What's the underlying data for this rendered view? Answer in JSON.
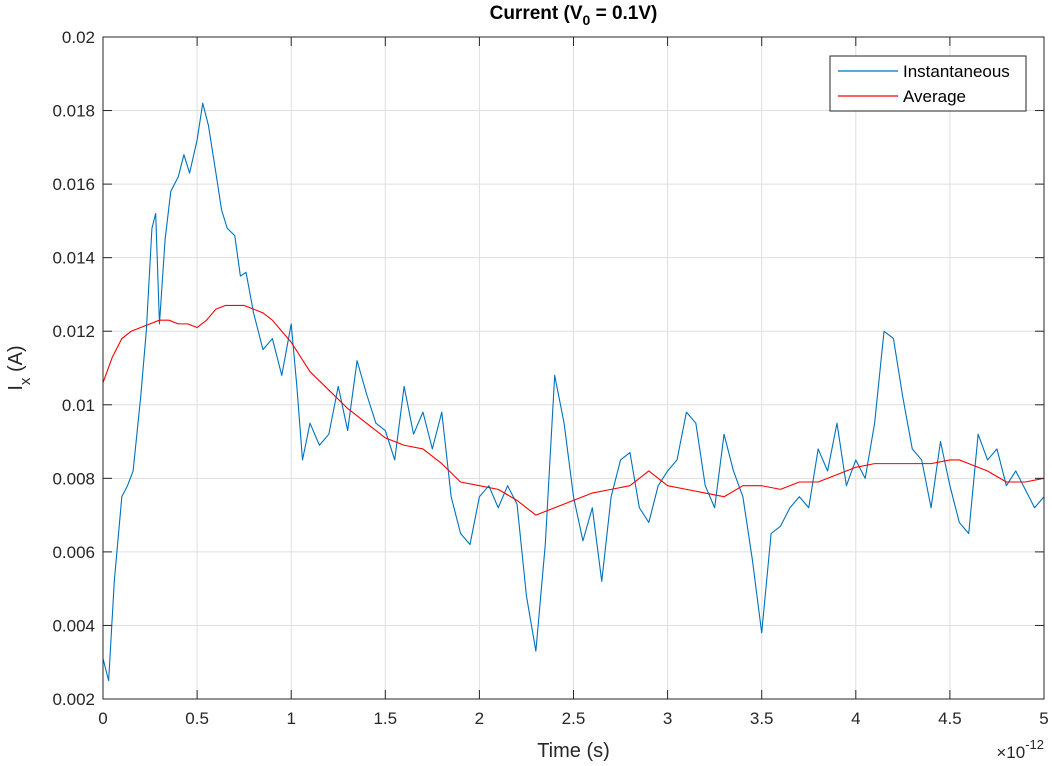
{
  "chart_data": {
    "type": "line",
    "title": {
      "main": "Current (V",
      "sub": "0",
      "rest": " = 0.1V)"
    },
    "xlabel": "Time (s)",
    "ylabel": {
      "main": "I",
      "sub": "x",
      "rest": " (A)"
    },
    "x_exponent": {
      "base": "×10",
      "power": "-12"
    },
    "xlim": [
      0,
      5
    ],
    "ylim": [
      0.002,
      0.02
    ],
    "x_ticks": [
      0,
      0.5,
      1,
      1.5,
      2,
      2.5,
      3,
      3.5,
      4,
      4.5,
      5
    ],
    "x_tick_labels": [
      "0",
      "0.5",
      "1",
      "1.5",
      "2",
      "2.5",
      "3",
      "3.5",
      "4",
      "4.5",
      "5"
    ],
    "y_ticks": [
      0.002,
      0.004,
      0.006,
      0.008,
      0.01,
      0.012,
      0.014,
      0.016,
      0.018,
      0.02
    ],
    "y_tick_labels": [
      "0.002",
      "0.004",
      "0.006",
      "0.008",
      "0.01",
      "0.012",
      "0.014",
      "0.016",
      "0.018",
      "0.02"
    ],
    "grid": true,
    "legend_position": "top-right",
    "series": [
      {
        "name": "Instantaneous",
        "color": "#0072BD",
        "x": [
          0,
          0.03,
          0.06,
          0.1,
          0.13,
          0.16,
          0.2,
          0.23,
          0.26,
          0.28,
          0.3,
          0.33,
          0.36,
          0.4,
          0.43,
          0.46,
          0.5,
          0.53,
          0.56,
          0.6,
          0.63,
          0.66,
          0.7,
          0.73,
          0.76,
          0.8,
          0.85,
          0.9,
          0.95,
          1.0,
          1.03,
          1.06,
          1.1,
          1.15,
          1.2,
          1.25,
          1.3,
          1.35,
          1.4,
          1.45,
          1.5,
          1.55,
          1.6,
          1.65,
          1.7,
          1.75,
          1.8,
          1.85,
          1.9,
          1.95,
          2.0,
          2.05,
          2.1,
          2.15,
          2.2,
          2.25,
          2.3,
          2.35,
          2.4,
          2.45,
          2.5,
          2.55,
          2.6,
          2.65,
          2.7,
          2.75,
          2.8,
          2.85,
          2.9,
          2.95,
          3.0,
          3.05,
          3.1,
          3.15,
          3.2,
          3.25,
          3.3,
          3.35,
          3.4,
          3.45,
          3.5,
          3.55,
          3.6,
          3.65,
          3.7,
          3.75,
          3.8,
          3.85,
          3.9,
          3.95,
          4.0,
          4.05,
          4.1,
          4.15,
          4.2,
          4.25,
          4.3,
          4.35,
          4.4,
          4.45,
          4.5,
          4.55,
          4.6,
          4.65,
          4.7,
          4.75,
          4.8,
          4.85,
          4.9,
          4.95,
          5.0
        ],
        "values": [
          0.0031,
          0.0025,
          0.0052,
          0.0075,
          0.0078,
          0.0082,
          0.0102,
          0.012,
          0.0148,
          0.0152,
          0.0122,
          0.0145,
          0.0158,
          0.0162,
          0.0168,
          0.0163,
          0.0172,
          0.0182,
          0.0176,
          0.0163,
          0.0153,
          0.0148,
          0.0146,
          0.0135,
          0.0136,
          0.0125,
          0.0115,
          0.0118,
          0.0108,
          0.0122,
          0.0105,
          0.0085,
          0.0095,
          0.0089,
          0.0092,
          0.0105,
          0.0093,
          0.0112,
          0.0103,
          0.0095,
          0.0093,
          0.0085,
          0.0105,
          0.0092,
          0.0098,
          0.0088,
          0.0098,
          0.0075,
          0.0065,
          0.0062,
          0.0075,
          0.0078,
          0.0072,
          0.0078,
          0.0073,
          0.0048,
          0.0033,
          0.0062,
          0.0108,
          0.0095,
          0.0075,
          0.0063,
          0.0072,
          0.0052,
          0.0075,
          0.0085,
          0.0087,
          0.0072,
          0.0068,
          0.0078,
          0.0082,
          0.0085,
          0.0098,
          0.0095,
          0.0078,
          0.0072,
          0.0092,
          0.0082,
          0.0075,
          0.0058,
          0.0038,
          0.0065,
          0.0067,
          0.0072,
          0.0075,
          0.0072,
          0.0088,
          0.0082,
          0.0095,
          0.0078,
          0.0085,
          0.008,
          0.0095,
          0.012,
          0.0118,
          0.0102,
          0.0088,
          0.0085,
          0.0072,
          0.009,
          0.0078,
          0.0068,
          0.0065,
          0.0092,
          0.0085,
          0.0088,
          0.0078,
          0.0082,
          0.0077,
          0.0072,
          0.0075
        ]
      },
      {
        "name": "Average",
        "color": "#FF0000",
        "x": [
          0,
          0.05,
          0.1,
          0.15,
          0.2,
          0.25,
          0.3,
          0.35,
          0.4,
          0.45,
          0.5,
          0.55,
          0.6,
          0.65,
          0.7,
          0.75,
          0.8,
          0.85,
          0.9,
          0.95,
          1.0,
          1.1,
          1.2,
          1.3,
          1.4,
          1.5,
          1.6,
          1.7,
          1.8,
          1.9,
          2.0,
          2.1,
          2.2,
          2.3,
          2.4,
          2.5,
          2.6,
          2.7,
          2.8,
          2.85,
          2.9,
          2.95,
          3.0,
          3.1,
          3.2,
          3.3,
          3.4,
          3.5,
          3.6,
          3.7,
          3.8,
          3.9,
          4.0,
          4.1,
          4.2,
          4.3,
          4.4,
          4.5,
          4.55,
          4.6,
          4.7,
          4.8,
          4.9,
          5.0
        ],
        "values": [
          0.0106,
          0.0113,
          0.0118,
          0.012,
          0.0121,
          0.0122,
          0.0123,
          0.0123,
          0.0122,
          0.0122,
          0.0121,
          0.0123,
          0.0126,
          0.0127,
          0.0127,
          0.0127,
          0.0126,
          0.0125,
          0.0123,
          0.012,
          0.0117,
          0.0109,
          0.0104,
          0.0099,
          0.0095,
          0.0091,
          0.0089,
          0.0088,
          0.0084,
          0.0079,
          0.0078,
          0.0077,
          0.0074,
          0.007,
          0.0072,
          0.0074,
          0.0076,
          0.0077,
          0.0078,
          0.008,
          0.0082,
          0.008,
          0.0078,
          0.0077,
          0.0076,
          0.0075,
          0.0078,
          0.0078,
          0.0077,
          0.0079,
          0.0079,
          0.0081,
          0.0083,
          0.0084,
          0.0084,
          0.0084,
          0.0084,
          0.0085,
          0.0085,
          0.0084,
          0.0082,
          0.0079,
          0.0079,
          0.008
        ]
      }
    ]
  }
}
